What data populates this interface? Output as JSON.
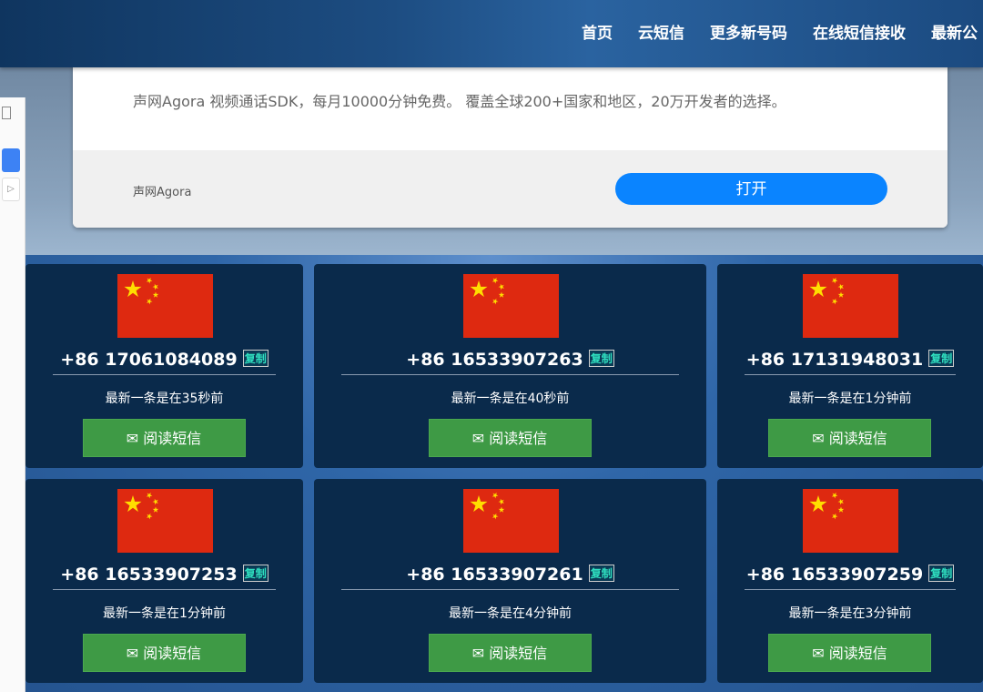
{
  "nav": {
    "items": [
      "首页",
      "云短信",
      "更多新号码",
      "在线短信接收",
      "最新公"
    ]
  },
  "ad": {
    "text": "声网Agora 视频通话SDK，每月10000分钟免费。 覆盖全球200+国家和地区，20万开发者的选择。",
    "brand": "声网Agora",
    "open_label": "打开"
  },
  "cards": [
    {
      "number": "+86 17061084089",
      "copy": "复制",
      "last": "最新一条是在35秒前",
      "button": "阅读短信"
    },
    {
      "number": "+86 16533907263",
      "copy": "复制",
      "last": "最新一条是在40秒前",
      "button": "阅读短信"
    },
    {
      "number": "+86 17131948031",
      "copy": "复制",
      "last": "最新一条是在1分钟前",
      "button": "阅读短信"
    },
    {
      "number": "+86 16533907253",
      "copy": "复制",
      "last": "最新一条是在1分钟前",
      "button": "阅读短信"
    },
    {
      "number": "+86 16533907261",
      "copy": "复制",
      "last": "最新一条是在4分钟前",
      "button": "阅读短信"
    },
    {
      "number": "+86 16533907259",
      "copy": "复制",
      "last": "最新一条是在3分钟前",
      "button": "阅读短信"
    }
  ],
  "colors": {
    "button": "#3e9a45",
    "card": "#0a2a4b",
    "open": "#0a84ff",
    "flag": "#de2910"
  }
}
